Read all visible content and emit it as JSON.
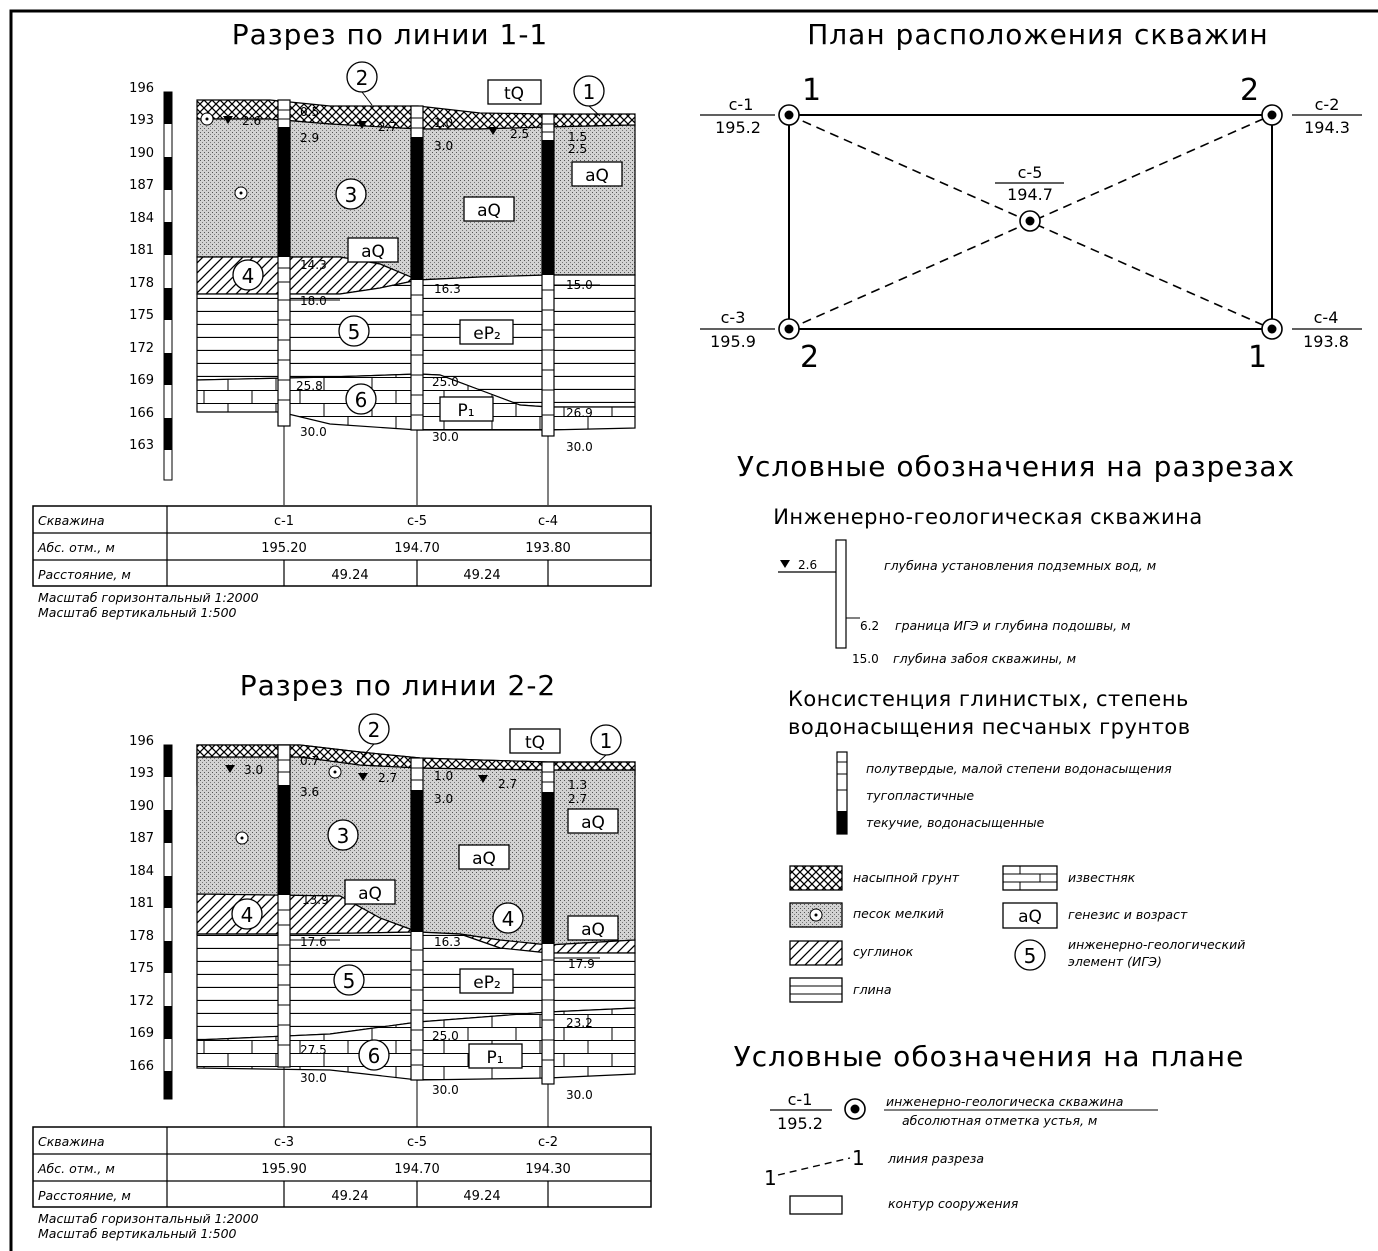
{
  "sections": [
    {
      "title": "Разрез по линии 1-1",
      "elev_labels": [
        "196",
        "193",
        "190",
        "187",
        "184",
        "181",
        "178",
        "175",
        "172",
        "169",
        "166",
        "163"
      ],
      "wells": [
        "с-1",
        "с-5",
        "с-4"
      ],
      "elevations": [
        "195.20",
        "194.70",
        "193.80"
      ],
      "distances": [
        "49.24",
        "49.24"
      ],
      "ann": {
        "gw1": "2.6",
        "gw2": "2.7",
        "gw3": "2.5",
        "a1": "0.5",
        "a2": "2.9",
        "a3": "1.0",
        "a4": "3.0",
        "a5": "1.5",
        "a6": "2.5",
        "a7": "14.3",
        "a8": "16.3",
        "a9": "15.0",
        "a10": "18.0",
        "a11": "25.8",
        "a12": "25.0",
        "a13": "26.9",
        "a14": "30.0",
        "a15": "30.0",
        "a16": "30.0"
      },
      "ige": [
        "2",
        "1",
        "3",
        "4",
        "5",
        "6"
      ],
      "genesis": [
        "tQ",
        "aQ",
        "aQ",
        "aQ",
        "eP₂",
        "P₁"
      ]
    },
    {
      "title": "Разрез по линии 2-2",
      "elev_labels": [
        "196",
        "193",
        "190",
        "187",
        "184",
        "181",
        "178",
        "175",
        "172",
        "169",
        "166"
      ],
      "wells": [
        "с-3",
        "с-5",
        "с-2"
      ],
      "elevations": [
        "195.90",
        "194.70",
        "194.30"
      ],
      "distances": [
        "49.24",
        "49.24"
      ],
      "ann": {
        "gw1": "3.0",
        "gw2": "2.7",
        "gw3": "2.7",
        "a1": "0.7",
        "a2": "3.6",
        "a3": "1.0",
        "a4": "3.0",
        "a5": "1.3",
        "a6": "2.7",
        "a7": "13.9",
        "a8": "16.3",
        "a9": "17.9",
        "a10": "17.6",
        "a11": "27.5",
        "a12": "25.0",
        "a13": "23.2",
        "a14": "30.0",
        "a15": "30.0",
        "a16": "30.0"
      },
      "ige": [
        "2",
        "1",
        "3",
        "4",
        "4",
        "5",
        "6"
      ],
      "genesis": [
        "tQ",
        "aQ",
        "aQ",
        "aQ",
        "aQ",
        "eP₂",
        "P₁"
      ]
    }
  ],
  "table_headers": {
    "well": "Скважина",
    "abs": "Абс. отм., м",
    "dist": "Расстояние, м"
  },
  "scale_notes": [
    "Масштаб горизонтальный 1:2000",
    "Масштаб вертикальный 1:500"
  ],
  "plan": {
    "title": "План расположения скважин",
    "wells": [
      {
        "name": "с-1",
        "elev": "195.2"
      },
      {
        "name": "с-2",
        "elev": "194.3"
      },
      {
        "name": "с-5",
        "elev": "194.7"
      },
      {
        "name": "с-3",
        "elev": "195.9"
      },
      {
        "name": "с-4",
        "elev": "193.8"
      }
    ],
    "line_labels": [
      "1",
      "2",
      "2",
      "1"
    ]
  },
  "legend_sections": {
    "title": "Условные обозначения на разрезах",
    "borehole_title": "Инженерно-геологическая скважина",
    "gw_value": "2.6",
    "gw_text": "глубина установления подземных вод, м",
    "bnd_value": "6.2",
    "bnd_text": "граница ИГЭ и глубина подошвы, м",
    "bottom_value": "15.0",
    "bottom_text": "глубина забоя скважины, м",
    "consistency_title_1": "Консистенция глинистых, степень",
    "consistency_title_2": "водонасыщения песчаных грунтов",
    "cons_items": [
      "полутвердые, малой степени водонасыщения",
      "тугопластичные",
      "текучие, водонасыщенные"
    ],
    "soils": [
      "насыпной грунт",
      "песок мелкий",
      "суглинок",
      "глина"
    ],
    "limestone": "известняк",
    "genesis_box": "aQ",
    "genesis_text": "генезис и возраст",
    "ige_num": "5",
    "ige_text_1": "инженерно-геологический",
    "ige_text_2": "элемент (ИГЭ)"
  },
  "legend_plan": {
    "title": "Условные обозначения на плане",
    "well_name": "с-1",
    "well_elev": "195.2",
    "well_text_1": "инженерно-геологическа скважина",
    "well_text_2": "абсолютная отметка устья, м",
    "line_from": "1",
    "line_to": "1",
    "line_text": "линия разреза",
    "contour_text": "контур сооружения"
  }
}
